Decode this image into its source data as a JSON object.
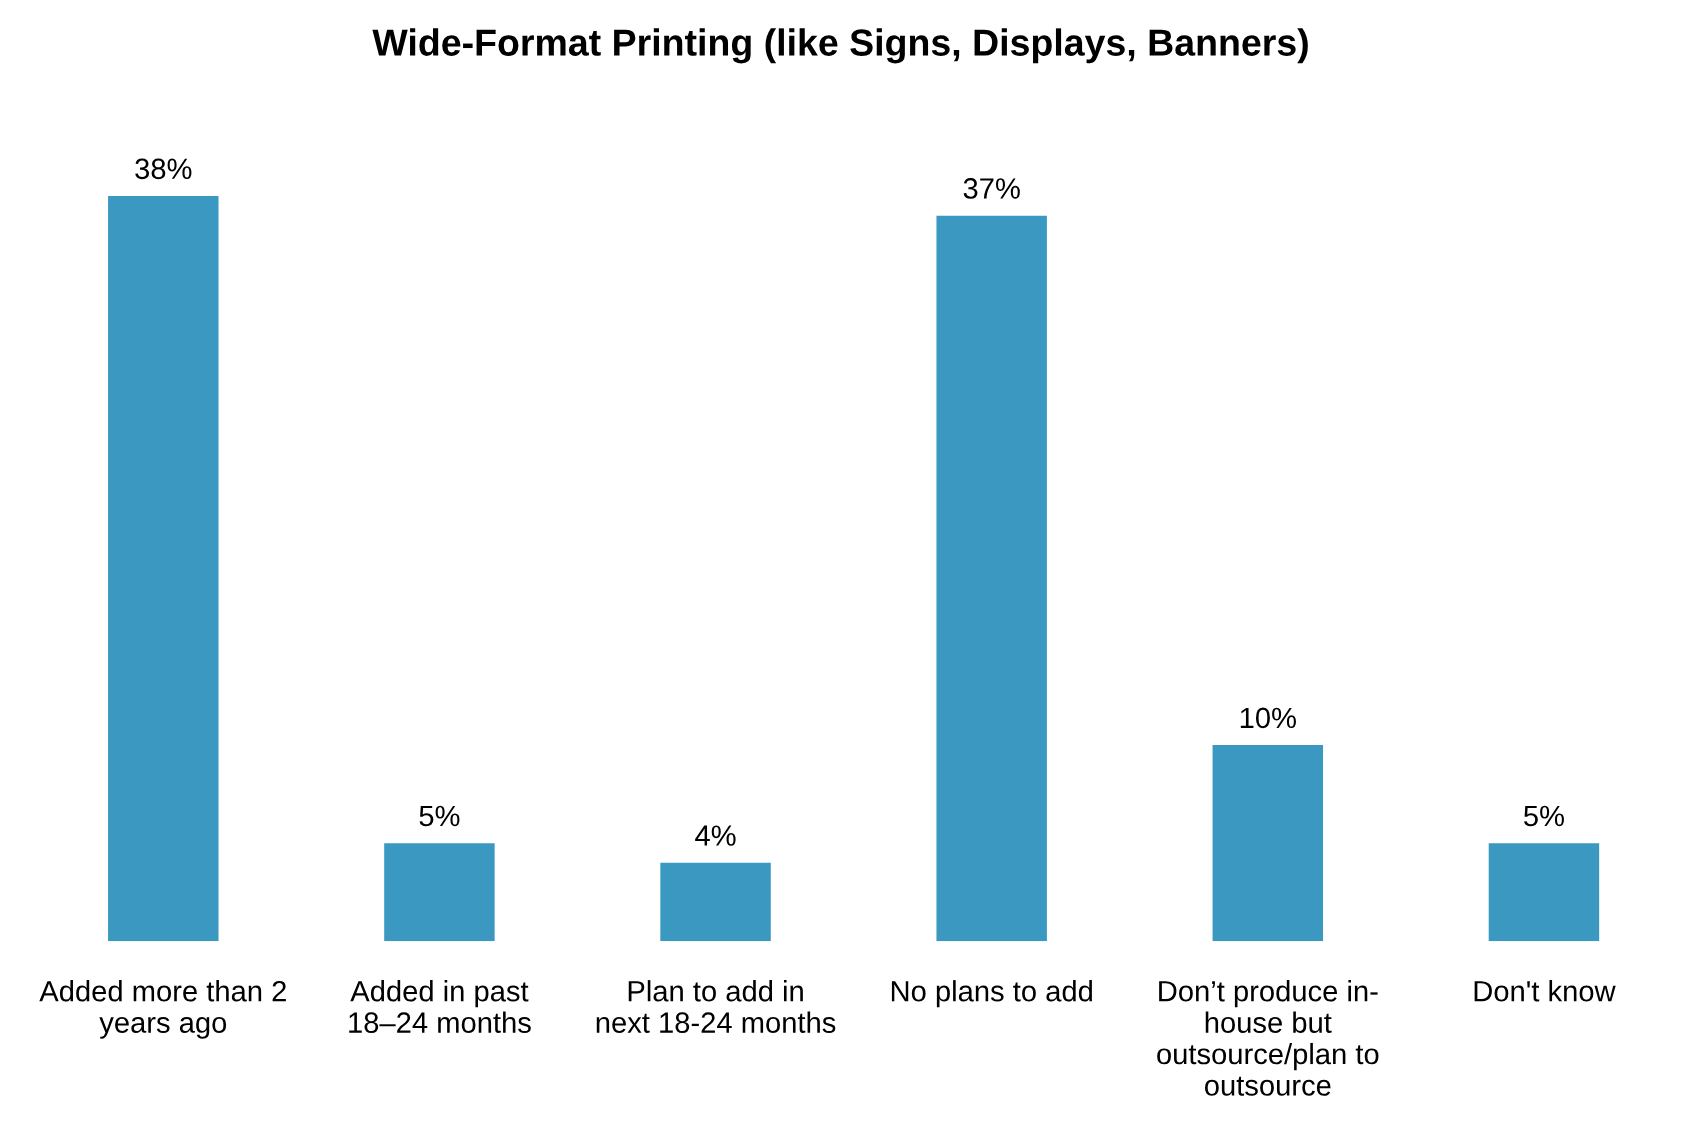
{
  "chart_data": {
    "type": "bar",
    "title": "Wide-Format Printing (like Signs, Displays, Banners)",
    "categories": [
      "Added more than 2 years ago",
      "Added in past 18–24 months",
      "Plan to add in next 18-24 months",
      "No plans to add",
      "Don’t produce in-house but outsource/plan to outsource",
      "Don't know"
    ],
    "values": [
      38,
      5,
      4,
      37,
      10,
      5
    ],
    "value_labels": [
      "38%",
      "5%",
      "4%",
      "37%",
      "10%",
      "5%"
    ],
    "color": "#3a98c1",
    "grid": false,
    "legend": false
  }
}
